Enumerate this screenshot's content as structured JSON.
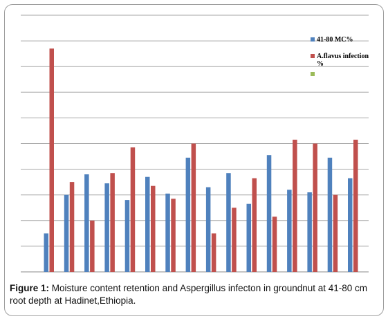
{
  "caption": {
    "label": "Figure 1:",
    "text": " Moisture content retention and Aspergillus infecton in groundnut at 41-80 cm root depth at Hadinet,Ethiopia."
  },
  "chart_data": {
    "type": "bar",
    "ylim": [
      0,
      10
    ],
    "grid": true,
    "legend_position": "top-right",
    "series": [
      {
        "name": "41-80 MC%",
        "color": "#4f81bd",
        "values": [
          1.5,
          3.0,
          3.8,
          3.45,
          2.8,
          3.7,
          3.05,
          4.45,
          3.3,
          3.85,
          2.65,
          4.55,
          3.2,
          3.1,
          4.45,
          3.65
        ]
      },
      {
        "name": "A.flavus infection %",
        "color": "#c0504d",
        "values": [
          8.7,
          3.5,
          2.0,
          3.85,
          4.85,
          3.35,
          2.85,
          5.0,
          1.5,
          2.5,
          3.65,
          2.15,
          5.15,
          5.0,
          3.0,
          5.15
        ]
      },
      {
        "name": "",
        "color": "#9bbb59",
        "values": []
      }
    ]
  }
}
